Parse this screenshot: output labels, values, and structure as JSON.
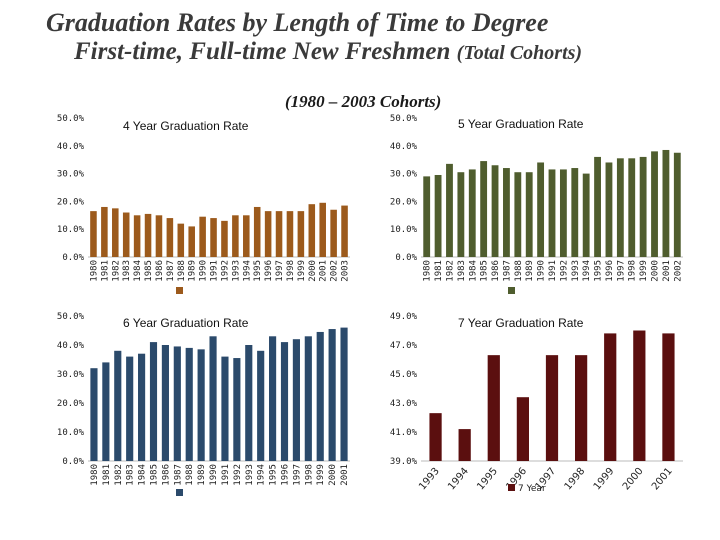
{
  "title_line1": "Graduation Rates by Length of Time to Degree",
  "title_line2": "First-time, Full-time New Freshmen",
  "title_line2_suffix": "(Total Cohorts)",
  "subtitle": "(1980 – 2003 Cohorts)",
  "chart_data": [
    {
      "type": "bar",
      "title": "4 Year Graduation Rate",
      "categories": [
        "1980",
        "1981",
        "1982",
        "1983",
        "1984",
        "1985",
        "1986",
        "1987",
        "1988",
        "1989",
        "1990",
        "1991",
        "1992",
        "1993",
        "1994",
        "1995",
        "1996",
        "1997",
        "1998",
        "1999",
        "2000",
        "2001",
        "2002",
        "2003"
      ],
      "values": [
        16.5,
        18.0,
        17.5,
        16.0,
        15.0,
        15.5,
        15.0,
        14.0,
        12.0,
        11.0,
        14.5,
        14.0,
        13.0,
        15.0,
        15.0,
        18.0,
        16.5,
        16.5,
        16.5,
        16.5,
        19.0,
        19.5,
        17.0,
        18.5
      ],
      "ylim": [
        0,
        50
      ],
      "yticks": [
        "0.0%",
        "10.0%",
        "20.0%",
        "30.0%",
        "40.0%",
        "50.0%"
      ],
      "color": "#9c5a1c",
      "legend_swatch": true
    },
    {
      "type": "bar",
      "title": "5 Year Graduation Rate",
      "categories": [
        "1980",
        "1981",
        "1982",
        "1983",
        "1984",
        "1985",
        "1986",
        "1987",
        "1988",
        "1989",
        "1990",
        "1991",
        "1992",
        "1993",
        "1994",
        "1995",
        "1996",
        "1997",
        "1998",
        "1999",
        "2000",
        "2001",
        "2002"
      ],
      "values": [
        29.0,
        29.5,
        33.5,
        30.5,
        31.5,
        34.5,
        33.0,
        32.0,
        30.5,
        30.5,
        34.0,
        31.5,
        31.5,
        32.0,
        30.0,
        36.0,
        34.0,
        35.5,
        35.5,
        36.0,
        38.0,
        38.5,
        37.5
      ],
      "ylim": [
        0,
        50
      ],
      "yticks": [
        "0.0%",
        "10.0%",
        "20.0%",
        "30.0%",
        "40.0%",
        "50.0%"
      ],
      "color": "#4f5d2e",
      "legend_swatch": true
    },
    {
      "type": "bar",
      "title": "6 Year Graduation Rate",
      "categories": [
        "1980",
        "1981",
        "1982",
        "1983",
        "1984",
        "1985",
        "1986",
        "1987",
        "1988",
        "1989",
        "1990",
        "1991",
        "1992",
        "1993",
        "1994",
        "1995",
        "1996",
        "1997",
        "1998",
        "1999",
        "2000",
        "2001"
      ],
      "values": [
        32.0,
        34.0,
        38.0,
        36.0,
        37.0,
        41.0,
        40.0,
        39.5,
        39.0,
        38.5,
        43.0,
        36.0,
        35.5,
        40.0,
        38.0,
        43.0,
        41.0,
        42.0,
        43.0,
        44.5,
        45.5,
        46.0
      ],
      "ylim": [
        0,
        50
      ],
      "yticks": [
        "0.0%",
        "10.0%",
        "20.0%",
        "30.0%",
        "40.0%",
        "50.0%"
      ],
      "color": "#2b4a6b",
      "legend_swatch": true
    },
    {
      "type": "bar",
      "title": "7 Year Graduation Rate",
      "categories": [
        "1993",
        "1994",
        "1995",
        "1996",
        "1997",
        "1998",
        "1999",
        "2000",
        "2001"
      ],
      "values": [
        42.3,
        41.2,
        46.3,
        43.4,
        46.3,
        46.3,
        47.8,
        48.0,
        47.8
      ],
      "ylim": [
        39,
        49
      ],
      "yticks": [
        "39.0%",
        "41.0%",
        "43.0%",
        "45.0%",
        "47.0%",
        "49.0%"
      ],
      "color": "#5b0f0f",
      "legend": "7 Year",
      "x_rotated": true
    }
  ]
}
